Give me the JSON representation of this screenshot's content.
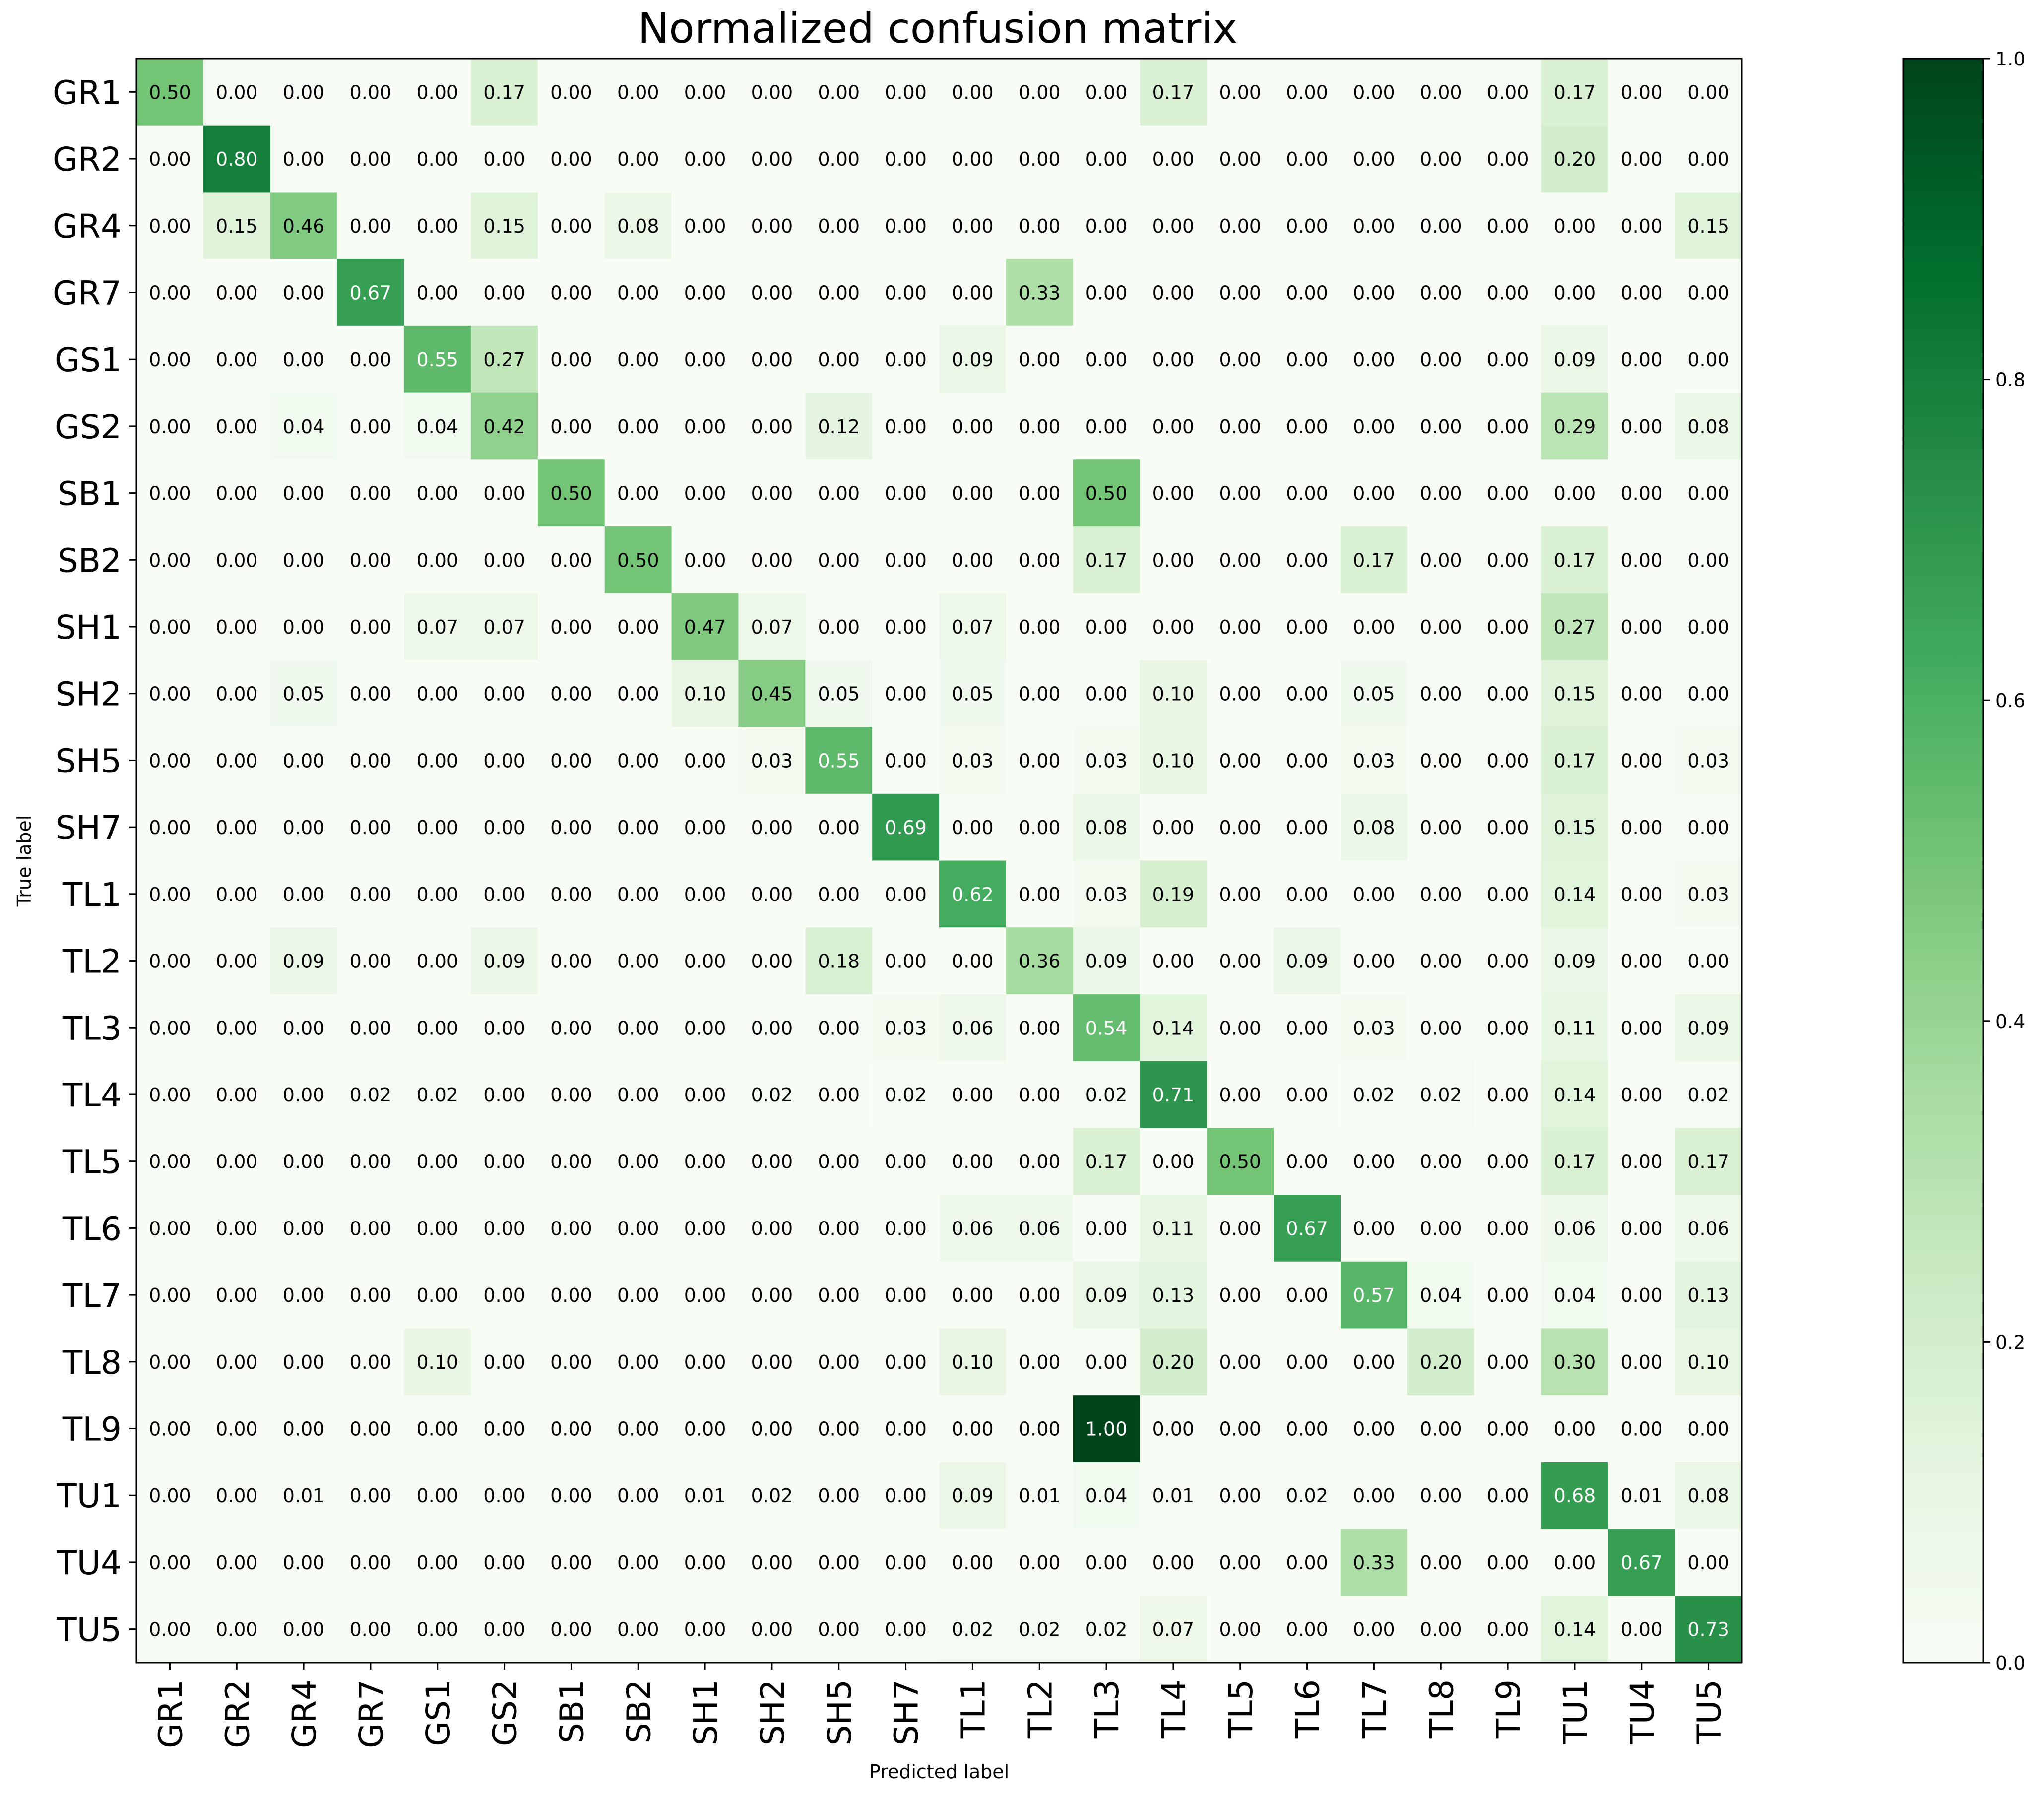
{
  "chart_data": {
    "type": "heatmap",
    "title": "Normalized confusion matrix",
    "xlabel": "Predicted label",
    "ylabel": "True label",
    "labels": [
      "GR1",
      "GR2",
      "GR4",
      "GR7",
      "GS1",
      "GS2",
      "SB1",
      "SB2",
      "SH1",
      "SH2",
      "SH5",
      "SH7",
      "TL1",
      "TL2",
      "TL3",
      "TL4",
      "TL5",
      "TL6",
      "TL7",
      "TL8",
      "TL9",
      "TU1",
      "TU4",
      "TU5"
    ],
    "matrix": [
      [
        0.5,
        0.0,
        0.0,
        0.0,
        0.0,
        0.17,
        0.0,
        0.0,
        0.0,
        0.0,
        0.0,
        0.0,
        0.0,
        0.0,
        0.0,
        0.17,
        0.0,
        0.0,
        0.0,
        0.0,
        0.0,
        0.17,
        0.0,
        0.0
      ],
      [
        0.0,
        0.8,
        0.0,
        0.0,
        0.0,
        0.0,
        0.0,
        0.0,
        0.0,
        0.0,
        0.0,
        0.0,
        0.0,
        0.0,
        0.0,
        0.0,
        0.0,
        0.0,
        0.0,
        0.0,
        0.0,
        0.2,
        0.0,
        0.0
      ],
      [
        0.0,
        0.15,
        0.46,
        0.0,
        0.0,
        0.15,
        0.0,
        0.08,
        0.0,
        0.0,
        0.0,
        0.0,
        0.0,
        0.0,
        0.0,
        0.0,
        0.0,
        0.0,
        0.0,
        0.0,
        0.0,
        0.0,
        0.0,
        0.15
      ],
      [
        0.0,
        0.0,
        0.0,
        0.67,
        0.0,
        0.0,
        0.0,
        0.0,
        0.0,
        0.0,
        0.0,
        0.0,
        0.0,
        0.33,
        0.0,
        0.0,
        0.0,
        0.0,
        0.0,
        0.0,
        0.0,
        0.0,
        0.0,
        0.0
      ],
      [
        0.0,
        0.0,
        0.0,
        0.0,
        0.55,
        0.27,
        0.0,
        0.0,
        0.0,
        0.0,
        0.0,
        0.0,
        0.09,
        0.0,
        0.0,
        0.0,
        0.0,
        0.0,
        0.0,
        0.0,
        0.0,
        0.09,
        0.0,
        0.0
      ],
      [
        0.0,
        0.0,
        0.04,
        0.0,
        0.04,
        0.42,
        0.0,
        0.0,
        0.0,
        0.0,
        0.12,
        0.0,
        0.0,
        0.0,
        0.0,
        0.0,
        0.0,
        0.0,
        0.0,
        0.0,
        0.0,
        0.29,
        0.0,
        0.08
      ],
      [
        0.0,
        0.0,
        0.0,
        0.0,
        0.0,
        0.0,
        0.5,
        0.0,
        0.0,
        0.0,
        0.0,
        0.0,
        0.0,
        0.0,
        0.5,
        0.0,
        0.0,
        0.0,
        0.0,
        0.0,
        0.0,
        0.0,
        0.0,
        0.0
      ],
      [
        0.0,
        0.0,
        0.0,
        0.0,
        0.0,
        0.0,
        0.0,
        0.5,
        0.0,
        0.0,
        0.0,
        0.0,
        0.0,
        0.0,
        0.17,
        0.0,
        0.0,
        0.0,
        0.17,
        0.0,
        0.0,
        0.17,
        0.0,
        0.0
      ],
      [
        0.0,
        0.0,
        0.0,
        0.0,
        0.07,
        0.07,
        0.0,
        0.0,
        0.47,
        0.07,
        0.0,
        0.0,
        0.07,
        0.0,
        0.0,
        0.0,
        0.0,
        0.0,
        0.0,
        0.0,
        0.0,
        0.27,
        0.0,
        0.0
      ],
      [
        0.0,
        0.0,
        0.05,
        0.0,
        0.0,
        0.0,
        0.0,
        0.0,
        0.1,
        0.45,
        0.05,
        0.0,
        0.05,
        0.0,
        0.0,
        0.1,
        0.0,
        0.0,
        0.05,
        0.0,
        0.0,
        0.15,
        0.0,
        0.0
      ],
      [
        0.0,
        0.0,
        0.0,
        0.0,
        0.0,
        0.0,
        0.0,
        0.0,
        0.0,
        0.03,
        0.55,
        0.0,
        0.03,
        0.0,
        0.03,
        0.1,
        0.0,
        0.0,
        0.03,
        0.0,
        0.0,
        0.17,
        0.0,
        0.03
      ],
      [
        0.0,
        0.0,
        0.0,
        0.0,
        0.0,
        0.0,
        0.0,
        0.0,
        0.0,
        0.0,
        0.0,
        0.69,
        0.0,
        0.0,
        0.08,
        0.0,
        0.0,
        0.0,
        0.08,
        0.0,
        0.0,
        0.15,
        0.0,
        0.0
      ],
      [
        0.0,
        0.0,
        0.0,
        0.0,
        0.0,
        0.0,
        0.0,
        0.0,
        0.0,
        0.0,
        0.0,
        0.0,
        0.62,
        0.0,
        0.03,
        0.19,
        0.0,
        0.0,
        0.0,
        0.0,
        0.0,
        0.14,
        0.0,
        0.03
      ],
      [
        0.0,
        0.0,
        0.09,
        0.0,
        0.0,
        0.09,
        0.0,
        0.0,
        0.0,
        0.0,
        0.18,
        0.0,
        0.0,
        0.36,
        0.09,
        0.0,
        0.0,
        0.09,
        0.0,
        0.0,
        0.0,
        0.09,
        0.0,
        0.0
      ],
      [
        0.0,
        0.0,
        0.0,
        0.0,
        0.0,
        0.0,
        0.0,
        0.0,
        0.0,
        0.0,
        0.0,
        0.03,
        0.06,
        0.0,
        0.54,
        0.14,
        0.0,
        0.0,
        0.03,
        0.0,
        0.0,
        0.11,
        0.0,
        0.09
      ],
      [
        0.0,
        0.0,
        0.0,
        0.02,
        0.02,
        0.0,
        0.0,
        0.0,
        0.0,
        0.02,
        0.0,
        0.02,
        0.0,
        0.0,
        0.02,
        0.71,
        0.0,
        0.0,
        0.02,
        0.02,
        0.0,
        0.14,
        0.0,
        0.02
      ],
      [
        0.0,
        0.0,
        0.0,
        0.0,
        0.0,
        0.0,
        0.0,
        0.0,
        0.0,
        0.0,
        0.0,
        0.0,
        0.0,
        0.0,
        0.17,
        0.0,
        0.5,
        0.0,
        0.0,
        0.0,
        0.0,
        0.17,
        0.0,
        0.17
      ],
      [
        0.0,
        0.0,
        0.0,
        0.0,
        0.0,
        0.0,
        0.0,
        0.0,
        0.0,
        0.0,
        0.0,
        0.0,
        0.06,
        0.06,
        0.0,
        0.11,
        0.0,
        0.67,
        0.0,
        0.0,
        0.0,
        0.06,
        0.0,
        0.06
      ],
      [
        0.0,
        0.0,
        0.0,
        0.0,
        0.0,
        0.0,
        0.0,
        0.0,
        0.0,
        0.0,
        0.0,
        0.0,
        0.0,
        0.0,
        0.09,
        0.13,
        0.0,
        0.0,
        0.57,
        0.04,
        0.0,
        0.04,
        0.0,
        0.13
      ],
      [
        0.0,
        0.0,
        0.0,
        0.0,
        0.1,
        0.0,
        0.0,
        0.0,
        0.0,
        0.0,
        0.0,
        0.0,
        0.1,
        0.0,
        0.0,
        0.2,
        0.0,
        0.0,
        0.0,
        0.2,
        0.0,
        0.3,
        0.0,
        0.1
      ],
      [
        0.0,
        0.0,
        0.0,
        0.0,
        0.0,
        0.0,
        0.0,
        0.0,
        0.0,
        0.0,
        0.0,
        0.0,
        0.0,
        0.0,
        1.0,
        0.0,
        0.0,
        0.0,
        0.0,
        0.0,
        0.0,
        0.0,
        0.0,
        0.0
      ],
      [
        0.0,
        0.0,
        0.01,
        0.0,
        0.0,
        0.0,
        0.0,
        0.0,
        0.01,
        0.02,
        0.0,
        0.0,
        0.09,
        0.01,
        0.04,
        0.01,
        0.0,
        0.02,
        0.0,
        0.0,
        0.0,
        0.68,
        0.01,
        0.08
      ],
      [
        0.0,
        0.0,
        0.0,
        0.0,
        0.0,
        0.0,
        0.0,
        0.0,
        0.0,
        0.0,
        0.0,
        0.0,
        0.0,
        0.0,
        0.0,
        0.0,
        0.0,
        0.0,
        0.33,
        0.0,
        0.0,
        0.0,
        0.67,
        0.0
      ],
      [
        0.0,
        0.0,
        0.0,
        0.0,
        0.0,
        0.0,
        0.0,
        0.0,
        0.0,
        0.0,
        0.0,
        0.0,
        0.02,
        0.02,
        0.02,
        0.07,
        0.0,
        0.0,
        0.0,
        0.0,
        0.0,
        0.14,
        0.0,
        0.73
      ]
    ],
    "colorbar": {
      "min": 0.0,
      "max": 1.0,
      "ticks": [
        "0.0",
        "0.2",
        "0.4",
        "0.6",
        "0.8",
        "1.0"
      ],
      "colormap": "Greens"
    },
    "grid": false
  }
}
